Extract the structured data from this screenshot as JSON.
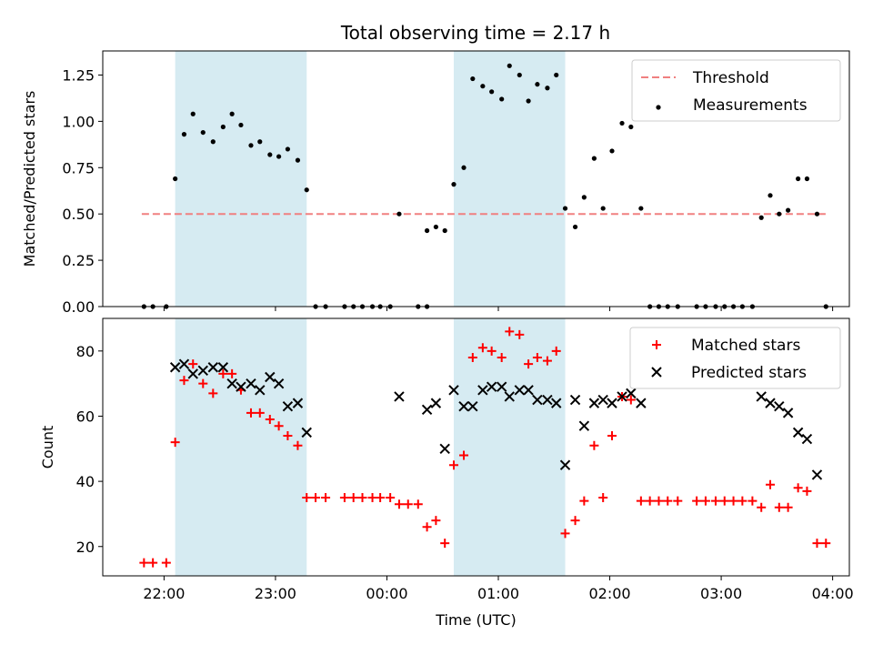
{
  "figure": {
    "title": "Total observing time = 2.17 h"
  },
  "chart_data": [
    {
      "type": "scatter",
      "ylabel": "Matched/Predicted stars",
      "xlabel": "",
      "ylim": [
        0,
        1.38
      ],
      "yticks": [
        "0.00",
        "0.25",
        "0.50",
        "0.75",
        "1.00",
        "1.25"
      ],
      "xlim": [
        21.45,
        28.15
      ],
      "xticks_hours": [
        22,
        23,
        24,
        25,
        26,
        27,
        28
      ],
      "shaded_intervals": [
        [
          22.1,
          23.28
        ],
        [
          24.6,
          25.6
        ]
      ],
      "shade_color": "#add8e6",
      "threshold": {
        "name": "Threshold",
        "value": 0.5,
        "x_range": [
          21.8,
          27.95
        ],
        "color": "#f08080"
      },
      "series": [
        {
          "name": "Measurements",
          "marker": "dot",
          "color": "#000000",
          "points": [
            [
              21.82,
              0.0
            ],
            [
              21.9,
              0.0
            ],
            [
              22.02,
              0.0
            ],
            [
              22.1,
              0.69
            ],
            [
              22.18,
              0.93
            ],
            [
              22.26,
              1.04
            ],
            [
              22.35,
              0.94
            ],
            [
              22.44,
              0.89
            ],
            [
              22.53,
              0.97
            ],
            [
              22.61,
              1.04
            ],
            [
              22.69,
              0.98
            ],
            [
              22.78,
              0.87
            ],
            [
              22.86,
              0.89
            ],
            [
              22.95,
              0.82
            ],
            [
              23.03,
              0.81
            ],
            [
              23.11,
              0.85
            ],
            [
              23.2,
              0.79
            ],
            [
              23.28,
              0.63
            ],
            [
              23.36,
              0.0
            ],
            [
              23.45,
              0.0
            ],
            [
              23.62,
              0.0
            ],
            [
              23.7,
              0.0
            ],
            [
              23.78,
              0.0
            ],
            [
              23.87,
              0.0
            ],
            [
              23.94,
              0.0
            ],
            [
              24.03,
              0.0
            ],
            [
              24.11,
              0.5
            ],
            [
              24.28,
              0.0
            ],
            [
              24.36,
              0.0
            ],
            [
              24.36,
              0.41
            ],
            [
              24.44,
              0.43
            ],
            [
              24.52,
              0.41
            ],
            [
              24.6,
              0.66
            ],
            [
              24.69,
              0.75
            ],
            [
              24.77,
              1.23
            ],
            [
              24.86,
              1.19
            ],
            [
              24.94,
              1.16
            ],
            [
              25.03,
              1.12
            ],
            [
              25.1,
              1.3
            ],
            [
              25.19,
              1.25
            ],
            [
              25.27,
              1.11
            ],
            [
              25.35,
              1.2
            ],
            [
              25.44,
              1.18
            ],
            [
              25.52,
              1.25
            ],
            [
              25.6,
              0.53
            ],
            [
              25.69,
              0.43
            ],
            [
              25.77,
              0.59
            ],
            [
              25.86,
              0.8
            ],
            [
              25.94,
              0.53
            ],
            [
              26.02,
              0.84
            ],
            [
              26.11,
              0.99
            ],
            [
              26.19,
              0.97
            ],
            [
              26.28,
              0.53
            ],
            [
              26.36,
              0.0
            ],
            [
              26.44,
              0.0
            ],
            [
              26.52,
              0.0
            ],
            [
              26.61,
              0.0
            ],
            [
              26.78,
              0.0
            ],
            [
              26.86,
              0.0
            ],
            [
              26.95,
              0.0
            ],
            [
              27.03,
              0.0
            ],
            [
              27.11,
              0.0
            ],
            [
              27.19,
              0.0
            ],
            [
              27.28,
              0.0
            ],
            [
              27.36,
              0.48
            ],
            [
              27.44,
              0.6
            ],
            [
              27.52,
              0.5
            ],
            [
              27.6,
              0.52
            ],
            [
              27.69,
              0.69
            ],
            [
              27.77,
              0.69
            ],
            [
              27.86,
              0.5
            ],
            [
              27.94,
              0.0
            ]
          ]
        }
      ],
      "legend": {
        "placement": "upper right",
        "entries": [
          "Threshold",
          "Measurements"
        ]
      }
    },
    {
      "type": "scatter",
      "ylabel": "Count",
      "xlabel": "Time (UTC)",
      "ylim": [
        11,
        90
      ],
      "yticks": [
        "20",
        "40",
        "60",
        "80"
      ],
      "xlim": [
        21.45,
        28.15
      ],
      "xticks_hours": [
        22,
        23,
        24,
        25,
        26,
        27,
        28
      ],
      "xtick_labels": [
        "22:00",
        "23:00",
        "00:00",
        "01:00",
        "02:00",
        "03:00",
        "04:00"
      ],
      "shaded_intervals": [
        [
          22.1,
          23.28
        ],
        [
          24.6,
          25.6
        ]
      ],
      "shade_color": "#add8e6",
      "series": [
        {
          "name": "Matched stars",
          "marker": "plus",
          "color": "#ff0000",
          "points": [
            [
              21.82,
              15
            ],
            [
              21.9,
              15
            ],
            [
              22.02,
              15
            ],
            [
              22.1,
              52
            ],
            [
              22.18,
              71
            ],
            [
              22.26,
              76
            ],
            [
              22.35,
              70
            ],
            [
              22.44,
              67
            ],
            [
              22.53,
              73
            ],
            [
              22.61,
              73
            ],
            [
              22.69,
              68
            ],
            [
              22.78,
              61
            ],
            [
              22.86,
              61
            ],
            [
              22.95,
              59
            ],
            [
              23.03,
              57
            ],
            [
              23.11,
              54
            ],
            [
              23.2,
              51
            ],
            [
              23.28,
              35
            ],
            [
              23.36,
              35
            ],
            [
              23.45,
              35
            ],
            [
              23.62,
              35
            ],
            [
              23.7,
              35
            ],
            [
              23.78,
              35
            ],
            [
              23.87,
              35
            ],
            [
              23.94,
              35
            ],
            [
              24.03,
              35
            ],
            [
              24.11,
              33
            ],
            [
              24.19,
              33
            ],
            [
              24.28,
              33
            ],
            [
              24.36,
              26
            ],
            [
              24.44,
              28
            ],
            [
              24.52,
              21
            ],
            [
              24.6,
              45
            ],
            [
              24.69,
              48
            ],
            [
              24.77,
              78
            ],
            [
              24.86,
              81
            ],
            [
              24.94,
              80
            ],
            [
              25.03,
              78
            ],
            [
              25.1,
              86
            ],
            [
              25.19,
              85
            ],
            [
              25.27,
              76
            ],
            [
              25.35,
              78
            ],
            [
              25.44,
              77
            ],
            [
              25.52,
              80
            ],
            [
              25.6,
              24
            ],
            [
              25.69,
              28
            ],
            [
              25.77,
              34
            ],
            [
              25.86,
              51
            ],
            [
              25.94,
              35
            ],
            [
              26.02,
              54
            ],
            [
              26.11,
              66
            ],
            [
              26.19,
              65
            ],
            [
              26.28,
              34
            ],
            [
              26.36,
              34
            ],
            [
              26.44,
              34
            ],
            [
              26.52,
              34
            ],
            [
              26.61,
              34
            ],
            [
              26.78,
              34
            ],
            [
              26.86,
              34
            ],
            [
              26.95,
              34
            ],
            [
              27.03,
              34
            ],
            [
              27.11,
              34
            ],
            [
              27.19,
              34
            ],
            [
              27.28,
              34
            ],
            [
              27.36,
              32
            ],
            [
              27.44,
              39
            ],
            [
              27.52,
              32
            ],
            [
              27.6,
              32
            ],
            [
              27.69,
              38
            ],
            [
              27.77,
              37
            ],
            [
              27.86,
              21
            ],
            [
              27.94,
              21
            ]
          ]
        },
        {
          "name": "Predicted stars",
          "marker": "x",
          "color": "#000000",
          "points": [
            [
              22.1,
              75
            ],
            [
              22.18,
              76
            ],
            [
              22.26,
              73
            ],
            [
              22.35,
              74
            ],
            [
              22.44,
              75
            ],
            [
              22.53,
              75
            ],
            [
              22.61,
              70
            ],
            [
              22.69,
              69
            ],
            [
              22.78,
              70
            ],
            [
              22.86,
              68
            ],
            [
              22.95,
              72
            ],
            [
              23.03,
              70
            ],
            [
              23.11,
              63
            ],
            [
              23.2,
              64
            ],
            [
              23.28,
              55
            ],
            [
              24.11,
              66
            ],
            [
              24.36,
              62
            ],
            [
              24.44,
              64
            ],
            [
              24.52,
              50
            ],
            [
              24.6,
              68
            ],
            [
              24.69,
              63
            ],
            [
              24.77,
              63
            ],
            [
              24.86,
              68
            ],
            [
              24.94,
              69
            ],
            [
              25.03,
              69
            ],
            [
              25.1,
              66
            ],
            [
              25.19,
              68
            ],
            [
              25.27,
              68
            ],
            [
              25.35,
              65
            ],
            [
              25.44,
              65
            ],
            [
              25.52,
              64
            ],
            [
              25.6,
              45
            ],
            [
              25.69,
              65
            ],
            [
              25.77,
              57
            ],
            [
              25.86,
              64
            ],
            [
              25.94,
              65
            ],
            [
              26.02,
              64
            ],
            [
              26.11,
              66
            ],
            [
              26.19,
              67
            ],
            [
              26.28,
              64
            ],
            [
              27.36,
              66
            ],
            [
              27.44,
              64
            ],
            [
              27.52,
              63
            ],
            [
              27.6,
              61
            ],
            [
              27.69,
              55
            ],
            [
              27.77,
              53
            ],
            [
              27.86,
              42
            ]
          ]
        }
      ],
      "legend": {
        "placement": "upper right",
        "entries": [
          "Matched stars",
          "Predicted stars"
        ]
      }
    }
  ]
}
